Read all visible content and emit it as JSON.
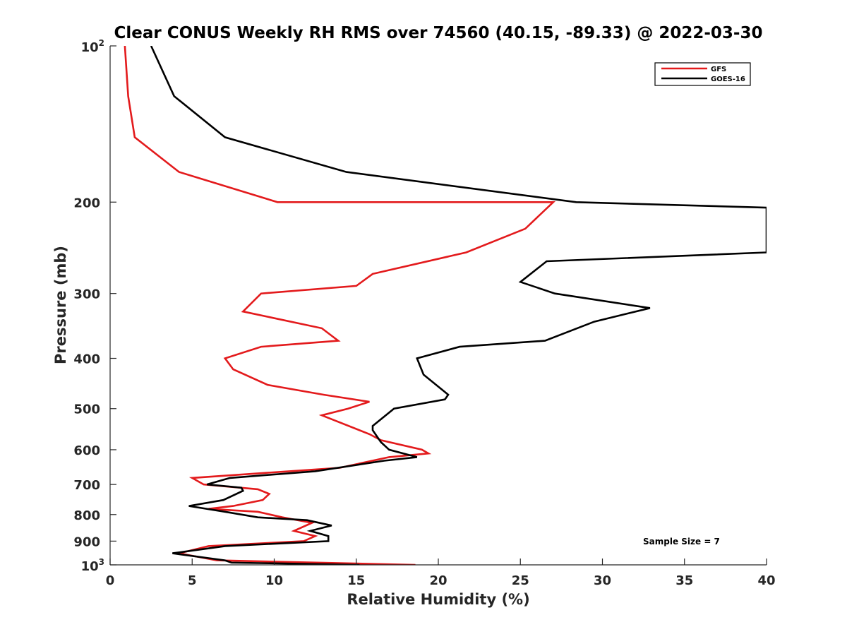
{
  "chart_data": {
    "type": "line",
    "title": "Clear CONUS Weekly RH RMS over 74560 (40.15, -89.33) @ 2022-03-30",
    "xlabel": "Relative Humidity (%)",
    "ylabel": "Pressure (mb)",
    "xlim": [
      0,
      40
    ],
    "ylim": [
      100,
      1000
    ],
    "yscale": "log",
    "y_reversed": true,
    "grid": false,
    "legend_position": "top-right",
    "x_ticks": [
      "0",
      "5",
      "10",
      "15",
      "20",
      "25",
      "30",
      "35",
      "40"
    ],
    "y_ticks": [
      {
        "value": 100,
        "base": "10",
        "exp": "2"
      },
      {
        "value": 200,
        "label": "200"
      },
      {
        "value": 300,
        "label": "300"
      },
      {
        "value": 400,
        "label": "400"
      },
      {
        "value": 500,
        "label": "500"
      },
      {
        "value": 600,
        "label": "600"
      },
      {
        "value": 700,
        "label": "700"
      },
      {
        "value": 800,
        "label": "800"
      },
      {
        "value": 900,
        "label": "900"
      },
      {
        "value": 1000,
        "base": "10",
        "exp": "3"
      }
    ],
    "annotation": "Sample Size = 7",
    "series": [
      {
        "name": "GFS",
        "color": "#e31a1c",
        "points": [
          [
            0.9,
            100
          ],
          [
            1.1,
            125
          ],
          [
            1.5,
            150
          ],
          [
            4.2,
            175
          ],
          [
            10.2,
            200
          ],
          [
            27,
            200
          ],
          [
            25.3,
            225
          ],
          [
            21.7,
            250
          ],
          [
            16.0,
            275
          ],
          [
            15.0,
            290
          ],
          [
            9.2,
            300
          ],
          [
            8.1,
            325
          ],
          [
            12.9,
            350
          ],
          [
            13.9,
            370
          ],
          [
            9.2,
            380
          ],
          [
            7.0,
            400
          ],
          [
            7.5,
            420
          ],
          [
            9.6,
            450
          ],
          [
            13.0,
            470
          ],
          [
            15.8,
            485
          ],
          [
            14.5,
            500
          ],
          [
            12.9,
            515
          ],
          [
            15.8,
            560
          ],
          [
            16.5,
            575
          ],
          [
            19.0,
            600
          ],
          [
            19.4,
            610
          ],
          [
            17.0,
            620
          ],
          [
            14.0,
            650
          ],
          [
            5.0,
            680
          ],
          [
            5.7,
            700
          ],
          [
            9.0,
            715
          ],
          [
            9.7,
            730
          ],
          [
            9.3,
            750
          ],
          [
            7.5,
            770
          ],
          [
            6.0,
            780
          ],
          [
            9.0,
            790
          ],
          [
            10.5,
            810
          ],
          [
            12.3,
            830
          ],
          [
            11.2,
            860
          ],
          [
            12.5,
            880
          ],
          [
            11.8,
            900
          ],
          [
            6.0,
            920
          ],
          [
            4.2,
            950
          ],
          [
            6.5,
            980
          ],
          [
            18.6,
            1000
          ]
        ]
      },
      {
        "name": "GOES-16",
        "color": "#000000",
        "points": [
          [
            2.5,
            100
          ],
          [
            3.9,
            125
          ],
          [
            7.0,
            150
          ],
          [
            14.4,
            175
          ],
          [
            28.4,
            200
          ],
          [
            40.0,
            205
          ],
          [
            40.0,
            250
          ],
          [
            26.6,
            260
          ],
          [
            25.0,
            285
          ],
          [
            27.1,
            300
          ],
          [
            32.9,
            320
          ],
          [
            29.5,
            340
          ],
          [
            26.5,
            370
          ],
          [
            21.3,
            380
          ],
          [
            18.7,
            400
          ],
          [
            19.1,
            430
          ],
          [
            20.6,
            470
          ],
          [
            20.4,
            480
          ],
          [
            17.3,
            500
          ],
          [
            16.0,
            540
          ],
          [
            16.0,
            550
          ],
          [
            16.5,
            580
          ],
          [
            17.0,
            600
          ],
          [
            18.7,
            620
          ],
          [
            16.7,
            630
          ],
          [
            12.5,
            660
          ],
          [
            7.3,
            680
          ],
          [
            5.9,
            700
          ],
          [
            8.0,
            710
          ],
          [
            8.1,
            720
          ],
          [
            6.9,
            750
          ],
          [
            4.8,
            770
          ],
          [
            7.0,
            790
          ],
          [
            9.0,
            810
          ],
          [
            12.0,
            820
          ],
          [
            13.5,
            840
          ],
          [
            12.2,
            860
          ],
          [
            13.3,
            880
          ],
          [
            13.3,
            900
          ],
          [
            7.0,
            920
          ],
          [
            3.8,
            950
          ],
          [
            7.0,
            980
          ],
          [
            7.4,
            990
          ],
          [
            15.2,
            1000
          ]
        ]
      }
    ]
  }
}
